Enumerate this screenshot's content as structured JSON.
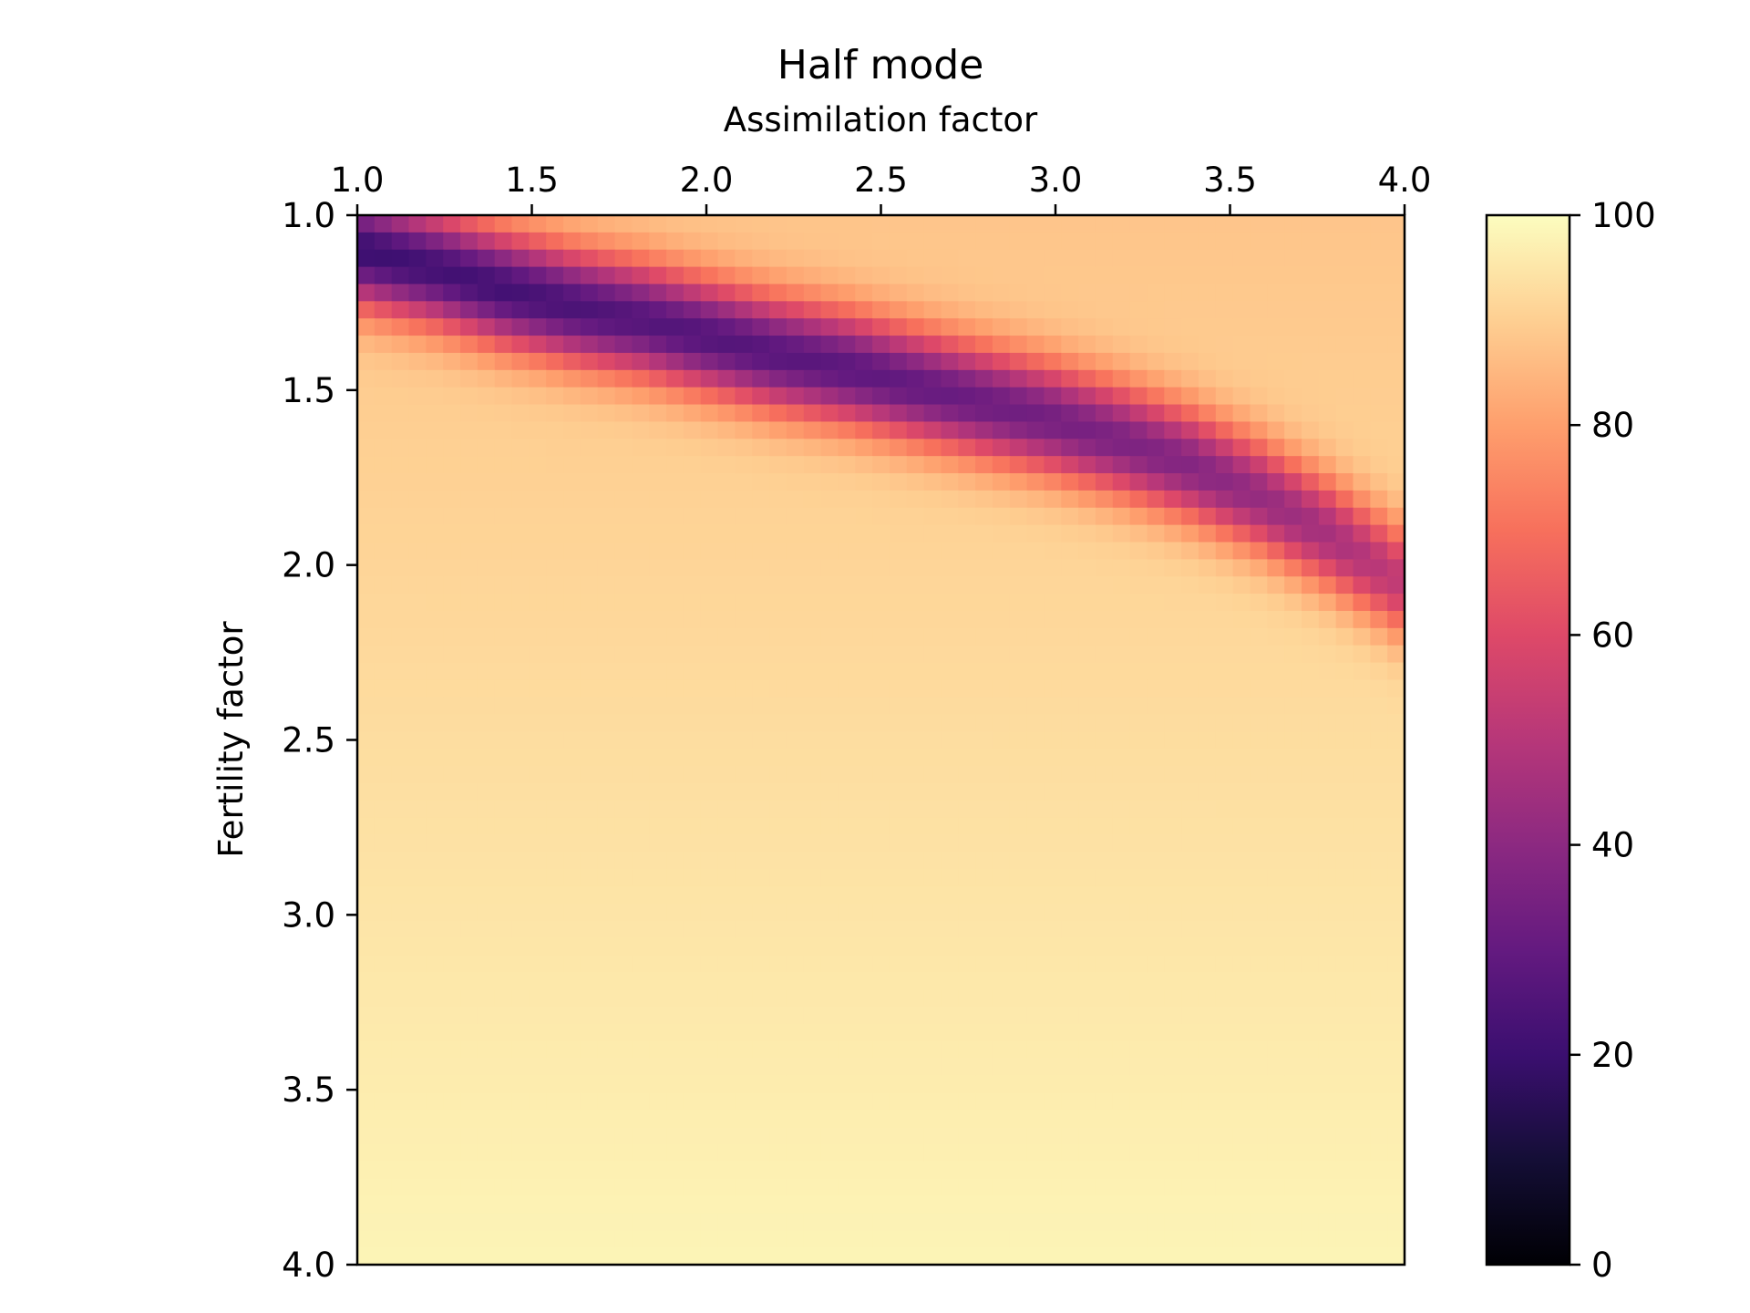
{
  "chart_data": {
    "type": "heatmap",
    "title": "Half mode",
    "xlabel": "Assimilation factor",
    "ylabel": "Fertility factor",
    "xlim": [
      1.0,
      4.0
    ],
    "ylim": [
      1.0,
      4.0
    ],
    "y_inverted": true,
    "x_axis_position": "top",
    "x_ticks": [
      "1.0",
      "1.5",
      "2.0",
      "2.5",
      "3.0",
      "3.5",
      "4.0"
    ],
    "y_ticks": [
      "1.0",
      "1.5",
      "2.0",
      "2.5",
      "3.0",
      "3.5",
      "4.0"
    ],
    "grid": false,
    "colormap": "magma",
    "colorbar": {
      "range": [
        0,
        100
      ],
      "ticks": [
        "0",
        "20",
        "40",
        "60",
        "80",
        "100"
      ],
      "position": "right"
    },
    "rows": 61,
    "cols": 61,
    "valley_center_y": [
      1.08,
      1.13,
      1.19,
      1.24,
      1.28,
      1.33,
      1.38,
      1.42,
      1.47,
      1.52,
      1.57,
      1.63,
      1.7,
      1.79,
      1.9,
      2.03
    ],
    "valley_center_x": [
      1.0,
      1.2,
      1.4,
      1.6,
      1.8,
      2.0,
      2.2,
      2.4,
      2.6,
      2.8,
      3.0,
      3.2,
      3.4,
      3.6,
      3.8,
      4.0
    ],
    "valley_min_value": [
      20,
      22,
      22,
      24,
      26,
      26,
      27,
      28,
      30,
      32,
      34,
      36,
      38,
      42,
      46,
      52
    ],
    "valley_half_width": 0.16,
    "background_value_top": 88,
    "background_value_bottom": 98
  }
}
